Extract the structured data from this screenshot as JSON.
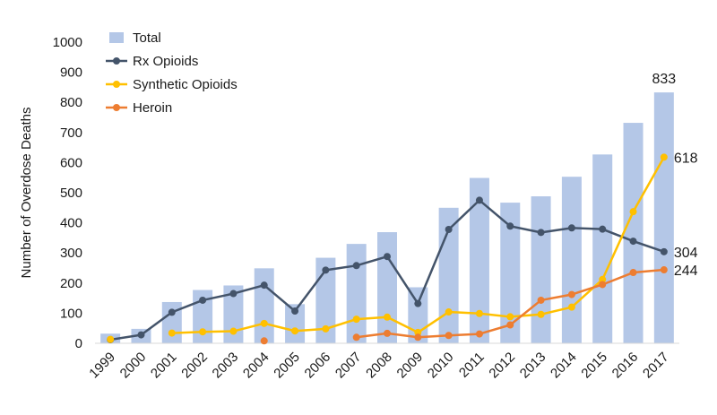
{
  "chart_data": {
    "type": "bar",
    "title": "",
    "xlabel": "",
    "ylabel": "Number of Overdose Deaths",
    "ylim": [
      0,
      1000
    ],
    "yticks": [
      "0",
      "100",
      "200",
      "300",
      "400",
      "500",
      "600",
      "700",
      "800",
      "900",
      "1000"
    ],
    "grid": false,
    "legend_position": "top-left",
    "categories": [
      "1999",
      "2000",
      "2001",
      "2002",
      "2003",
      "2004",
      "2005",
      "2006",
      "2007",
      "2008",
      "2009",
      "2010",
      "2011",
      "2012",
      "2013",
      "2014",
      "2015",
      "2016",
      "2017"
    ],
    "series": [
      {
        "name": "Total",
        "kind": "bar",
        "color": "#b4c7e7",
        "values": [
          32,
          48,
          137,
          177,
          192,
          249,
          130,
          284,
          330,
          369,
          186,
          450,
          549,
          467,
          488,
          553,
          627,
          732,
          833
        ]
      },
      {
        "name": "Rx Opioids",
        "kind": "line",
        "color": "#44546a",
        "values": [
          12,
          28,
          103,
          143,
          165,
          193,
          107,
          243,
          258,
          288,
          132,
          378,
          475,
          389,
          368,
          383,
          379,
          339,
          304
        ]
      },
      {
        "name": "Synthetic Opioids",
        "kind": "line",
        "color": "#ffc000",
        "values": [
          13,
          null,
          34,
          38,
          40,
          66,
          41,
          48,
          80,
          87,
          36,
          104,
          99,
          88,
          96,
          120,
          212,
          437,
          618
        ]
      },
      {
        "name": "Heroin",
        "kind": "line",
        "color": "#ed7d31",
        "values": [
          null,
          null,
          null,
          null,
          null,
          8,
          null,
          null,
          20,
          33,
          20,
          26,
          31,
          61,
          143,
          162,
          195,
          235,
          244
        ]
      }
    ],
    "data_labels": [
      {
        "series": "Total",
        "category": "2017",
        "text": "833"
      },
      {
        "series": "Synthetic Opioids",
        "category": "2017",
        "text": "618"
      },
      {
        "series": "Rx Opioids",
        "category": "2017",
        "text": "304"
      },
      {
        "series": "Heroin",
        "category": "2017",
        "text": "244"
      }
    ]
  }
}
